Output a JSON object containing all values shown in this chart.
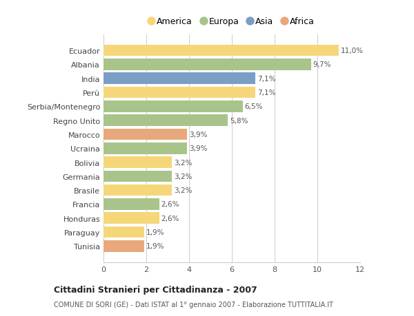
{
  "categories": [
    "Tunisia",
    "Paraguay",
    "Honduras",
    "Francia",
    "Brasile",
    "Germania",
    "Bolivia",
    "Ucraina",
    "Marocco",
    "Regno Unito",
    "Serbia/Montenegro",
    "Perù",
    "India",
    "Albania",
    "Ecuador"
  ],
  "values": [
    1.9,
    1.9,
    2.6,
    2.6,
    3.2,
    3.2,
    3.2,
    3.9,
    3.9,
    5.8,
    6.5,
    7.1,
    7.1,
    9.7,
    11.0
  ],
  "continents": [
    "Africa",
    "America",
    "America",
    "Europa",
    "America",
    "Europa",
    "America",
    "Europa",
    "Africa",
    "Europa",
    "Europa",
    "America",
    "Asia",
    "Europa",
    "America"
  ],
  "colors": {
    "America": "#F5D77A",
    "Europa": "#A8C48A",
    "Asia": "#7B9EC7",
    "Africa": "#E8A87C"
  },
  "labels": [
    "1,9%",
    "1,9%",
    "2,6%",
    "2,6%",
    "3,2%",
    "3,2%",
    "3,2%",
    "3,9%",
    "3,9%",
    "5,8%",
    "6,5%",
    "7,1%",
    "7,1%",
    "9,7%",
    "11,0%"
  ],
  "xlim": [
    0,
    12
  ],
  "xticks": [
    0,
    2,
    4,
    6,
    8,
    10,
    12
  ],
  "title": "Cittadini Stranieri per Cittadinanza - 2007",
  "subtitle": "COMUNE DI SORI (GE) - Dati ISTAT al 1° gennaio 2007 - Elaborazione TUTTITALIA.IT",
  "legend_order": [
    "America",
    "Europa",
    "Asia",
    "Africa"
  ],
  "background_color": "#FFFFFF",
  "bar_height": 0.82,
  "grid_color": "#CCCCCC",
  "label_fontsize": 7.5,
  "tick_fontsize": 8
}
